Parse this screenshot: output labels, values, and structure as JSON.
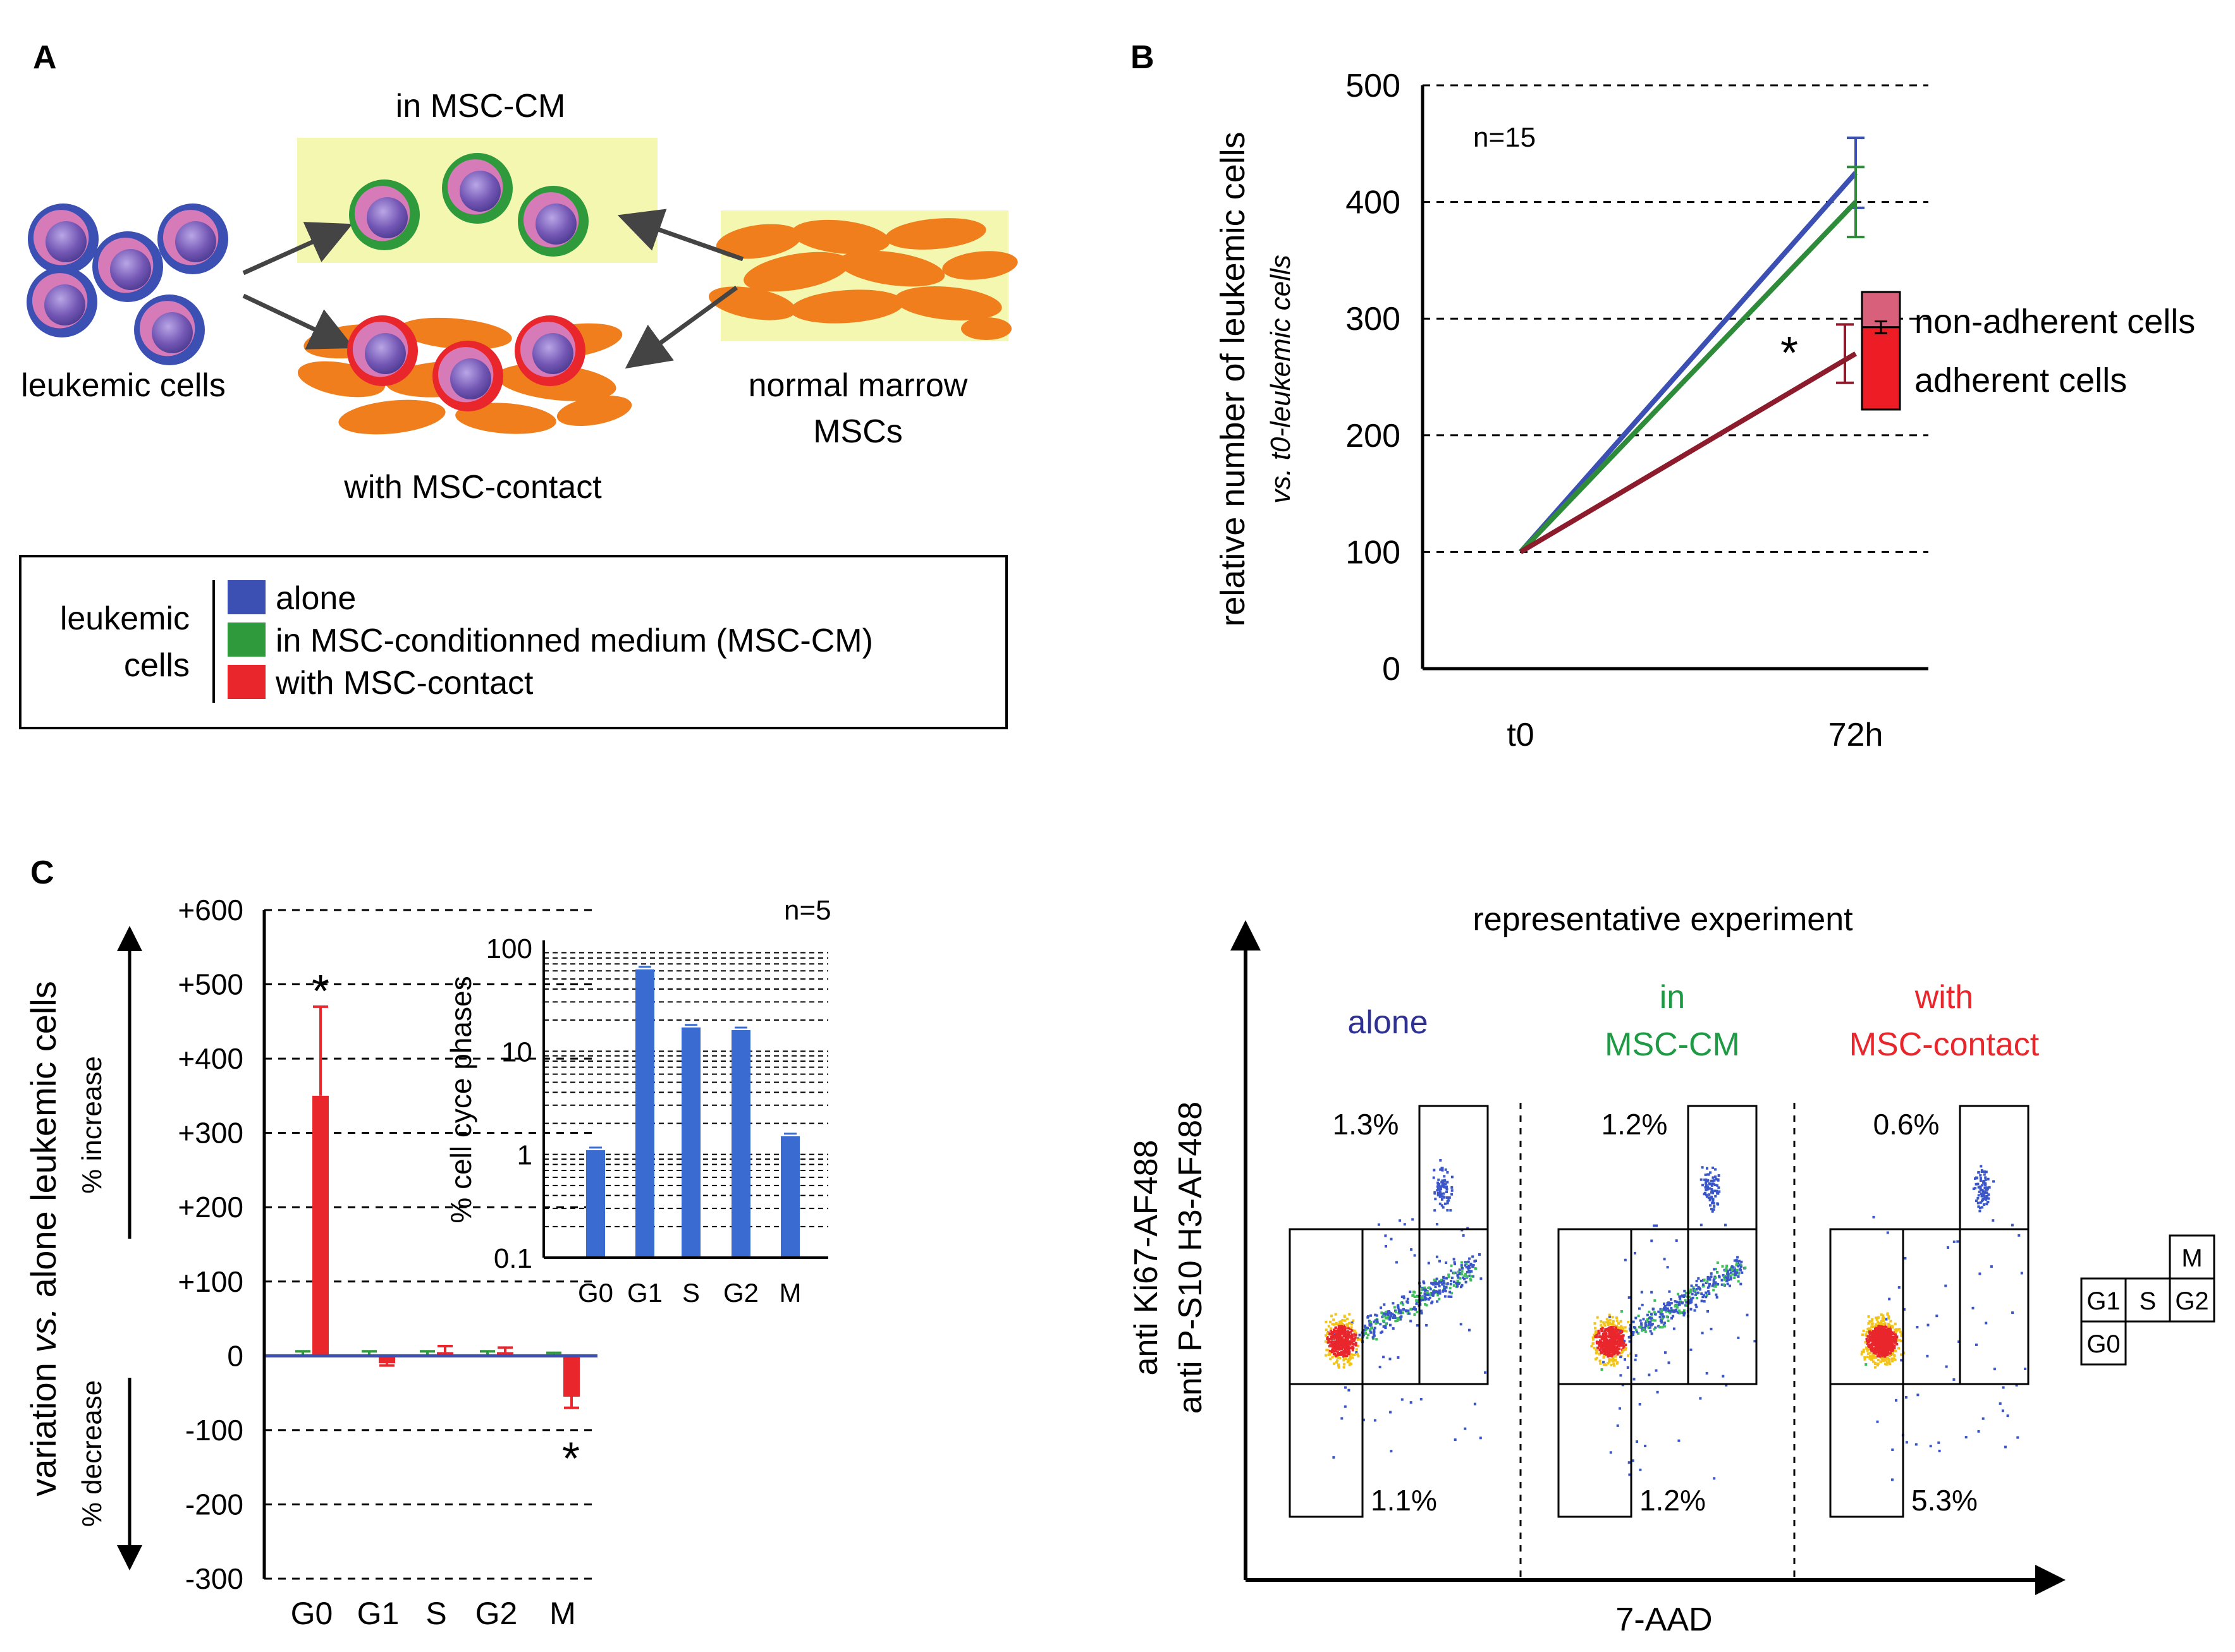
{
  "panels": {
    "A": {
      "letter": "A",
      "label_in_msc_cm": "in MSC-CM",
      "label_leukemic_cells": "leukemic cells",
      "label_with_contact": "with MSC-contact",
      "label_normal_marrow": "normal marrow",
      "label_mscs": "MSCs",
      "legend": {
        "group_line1": "leukemic",
        "group_line2": "cells",
        "items": [
          {
            "label": "alone",
            "color": "#3c4fb3"
          },
          {
            "label": "in MSC-conditionned medium (MSC-CM)",
            "color": "#2e9a3c"
          },
          {
            "label": "with MSC-contact",
            "color": "#e8262c"
          }
        ]
      },
      "colors": {
        "yellow_box": "#f3f7b0",
        "msc": "#f07e1c",
        "cell_core": "#7b5fb8",
        "cell_pink": "#d77ab8"
      }
    },
    "B": {
      "letter": "B",
      "n_label": "n=15",
      "legend_non_adherent": "non-adherent cells",
      "legend_adherent": "adherent cells",
      "star": "*"
    },
    "C": {
      "letter": "C",
      "n_label": "n=5",
      "ylabel_main": "variation vs. alone leukemic cells",
      "ylabel_vs": "vs.",
      "ylabel_pre": "variation ",
      "ylabel_post": " alone leukemic cells",
      "increase_label": "% increase",
      "decrease_label": "% decrease",
      "star": "*"
    },
    "D": {
      "title": "representative experiment",
      "ylabel_line1": "anti Ki67-AF488",
      "ylabel_line2_pre": "anti ",
      "ylabel_line2_p": "P",
      "ylabel_line2_post": "-S10 H3-AF488",
      "xlabel": "7-AAD",
      "conditions": [
        {
          "line1": "alone",
          "line2": "",
          "color": "#2f3192",
          "top_pct": "1.3%",
          "bottom_pct": "1.1%"
        },
        {
          "line1": "in",
          "line2": "MSC-CM",
          "color": "#1e9a45",
          "top_pct": "1.2%",
          "bottom_pct": "1.2%"
        },
        {
          "line1": "with",
          "line2": "MSC-contact",
          "color": "#e8262c",
          "top_pct": "0.6%",
          "bottom_pct": "5.3%"
        }
      ],
      "gate_key": {
        "m": "M",
        "g1": "G1",
        "s": "S",
        "g2": "G2",
        "g0": "G0"
      }
    }
  },
  "chart_data": [
    {
      "type": "line",
      "title": "",
      "xlabel": "",
      "ylabel": "relative number of leukemic cells",
      "ylabel_sub": "vs. t0-leukemic cells",
      "categories": [
        "t0",
        "72h"
      ],
      "ylim": [
        0,
        500
      ],
      "yticks": [
        0,
        100,
        200,
        300,
        400,
        500
      ],
      "series": [
        {
          "name": "alone",
          "color": "#3c4fb3",
          "values": [
            100,
            425
          ],
          "err": [
            0,
            30
          ]
        },
        {
          "name": "in MSC-CM",
          "color": "#2e8b3a",
          "values": [
            100,
            400
          ],
          "err": [
            0,
            30
          ]
        },
        {
          "name": "with MSC-contact",
          "color": "#8c1b2c",
          "values": [
            100,
            270
          ],
          "err": [
            0,
            25
          ]
        }
      ],
      "stacked_bar": {
        "non_adherent": 30,
        "adherent": 70,
        "err": 5
      }
    },
    {
      "type": "bar",
      "title": "",
      "xlabel": "",
      "ylabel": "variation vs. alone leukemic cells",
      "categories": [
        "G0",
        "G1",
        "S",
        "G2",
        "M"
      ],
      "ylim": [
        -300,
        600
      ],
      "yticks": [
        -300,
        -200,
        -100,
        0,
        100,
        200,
        300,
        400,
        500,
        600
      ],
      "ytick_labels": [
        "-300",
        "-200",
        "-100",
        "0",
        "+100",
        "+200",
        "+300",
        "+400",
        "+500",
        "+600"
      ],
      "series": [
        {
          "name": "in MSC-CM",
          "color": "#2e9a3c",
          "values": [
            2,
            2,
            2,
            2,
            0
          ],
          "err": [
            4,
            4,
            4,
            4,
            4
          ]
        },
        {
          "name": "with MSC-contact",
          "color": "#e8262c",
          "values": [
            350,
            -10,
            5,
            5,
            -55
          ],
          "err": [
            120,
            3,
            8,
            6,
            15
          ]
        }
      ],
      "significant": [
        "G0",
        "M"
      ]
    },
    {
      "type": "bar",
      "title": "",
      "xlabel": "",
      "ylabel": "% cell cyce phases",
      "scale": "log",
      "categories": [
        "G0",
        "G1",
        "S",
        "G2",
        "M"
      ],
      "ylim": [
        0.1,
        100
      ],
      "yticks": [
        0.1,
        1,
        10,
        100
      ],
      "ytick_labels": [
        "0.1",
        "1",
        "10",
        "100"
      ],
      "series": [
        {
          "name": "alone",
          "color": "#3a6bd0",
          "values": [
            1.1,
            62,
            17,
            16,
            1.5
          ]
        }
      ]
    }
  ]
}
